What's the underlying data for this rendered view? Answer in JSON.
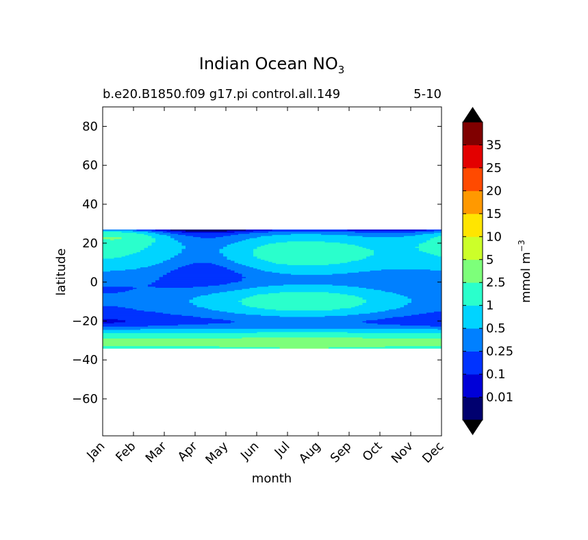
{
  "chart_data": {
    "type": "contour",
    "title": "Indian Ocean NO",
    "title_subscript": "3",
    "subtitle_left": "b.e20.B1850.f09 g17.pi control.all.149",
    "subtitle_right": "5-10",
    "xlabel": "month",
    "ylabel": "latitude",
    "x_ticks": [
      "Jan",
      "Feb",
      "Mar",
      "Apr",
      "May",
      "Jun",
      "Jul",
      "Aug",
      "Sep",
      "Oct",
      "Nov",
      "Dec"
    ],
    "xlim": [
      1,
      12
    ],
    "y_ticks": [
      80,
      60,
      40,
      20,
      0,
      -20,
      -40,
      -60
    ],
    "y_tick_labels": [
      "80",
      "60",
      "40",
      "20",
      "0",
      "−20",
      "−40",
      "−60"
    ],
    "ylim": [
      -79,
      90
    ],
    "data_lat_range": [
      -34,
      27
    ],
    "colorbar": {
      "label": "mmol m",
      "label_superscript": "−3",
      "extend": "both",
      "levels": [
        0,
        0.01,
        0.1,
        0.25,
        0.5,
        1,
        2.5,
        5,
        10,
        15,
        20,
        25,
        35
      ],
      "tick_labels": [
        "0.01",
        "0.1",
        "0.25",
        "0.5",
        "1",
        "2.5",
        "5",
        "10",
        "15",
        "20",
        "25",
        "35"
      ],
      "colors": [
        "#00006f",
        "#0000d8",
        "#0033ff",
        "#0080ff",
        "#00d4ff",
        "#2affcc",
        "#7dff7a",
        "#ccff29",
        "#ffe500",
        "#ff9900",
        "#ff4a00",
        "#e30000",
        "#800000"
      ],
      "under_color": "#000000",
      "over_color": "#000000"
    }
  }
}
